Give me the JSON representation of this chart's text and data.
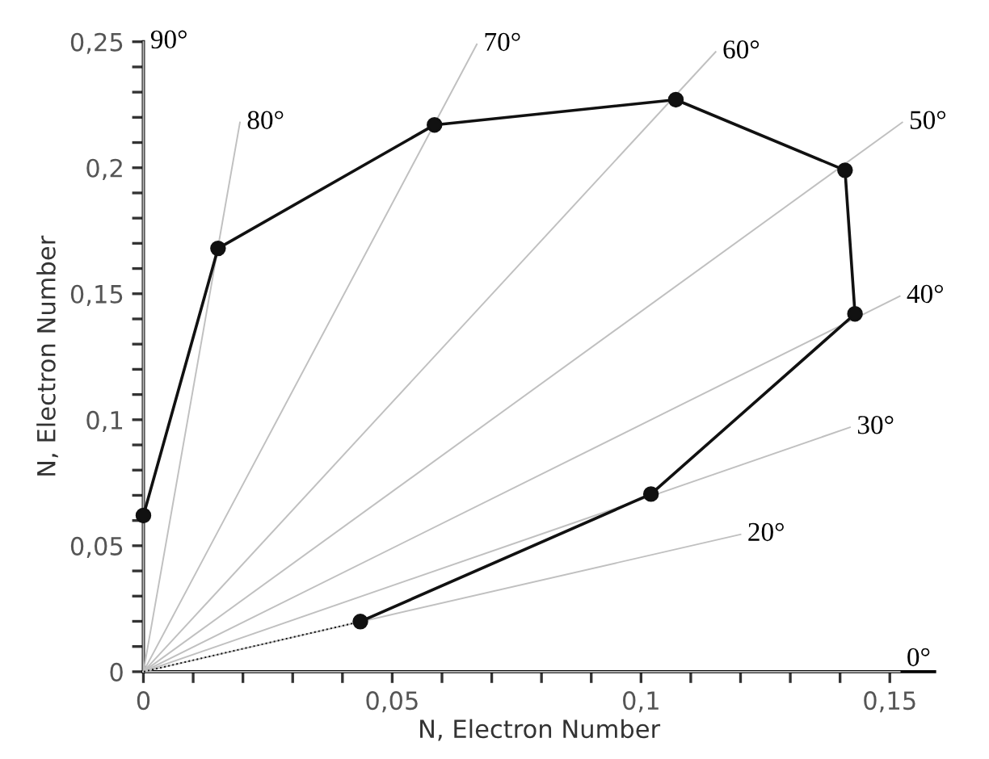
{
  "chart_data": {
    "type": "line",
    "xlabel": "N, Electron Number",
    "ylabel": "N, Electron Number",
    "xlim": [
      0,
      0.159
    ],
    "ylim": [
      0,
      0.25
    ],
    "xticks": [
      {
        "value": 0,
        "label": "0"
      },
      {
        "value": 0.01,
        "label": null
      },
      {
        "value": 0.02,
        "label": null
      },
      {
        "value": 0.03,
        "label": null
      },
      {
        "value": 0.04,
        "label": null
      },
      {
        "value": 0.05,
        "label": "0,05"
      },
      {
        "value": 0.06,
        "label": null
      },
      {
        "value": 0.07,
        "label": null
      },
      {
        "value": 0.08,
        "label": null
      },
      {
        "value": 0.09,
        "label": null
      },
      {
        "value": 0.1,
        "label": "0,1"
      },
      {
        "value": 0.11,
        "label": null
      },
      {
        "value": 0.12,
        "label": null
      },
      {
        "value": 0.13,
        "label": null
      },
      {
        "value": 0.14,
        "label": null
      },
      {
        "value": 0.15,
        "label": "0,15"
      }
    ],
    "yticks": [
      {
        "value": 0,
        "label": "0"
      },
      {
        "value": 0.01,
        "label": null
      },
      {
        "value": 0.02,
        "label": null
      },
      {
        "value": 0.03,
        "label": null
      },
      {
        "value": 0.04,
        "label": null
      },
      {
        "value": 0.05,
        "label": "0,05"
      },
      {
        "value": 0.06,
        "label": null
      },
      {
        "value": 0.07,
        "label": null
      },
      {
        "value": 0.08,
        "label": null
      },
      {
        "value": 0.09,
        "label": null
      },
      {
        "value": 0.1,
        "label": "0,1"
      },
      {
        "value": 0.11,
        "label": null
      },
      {
        "value": 0.12,
        "label": null
      },
      {
        "value": 0.13,
        "label": null
      },
      {
        "value": 0.14,
        "label": null
      },
      {
        "value": 0.15,
        "label": "0,15"
      },
      {
        "value": 0.16,
        "label": null
      },
      {
        "value": 0.17,
        "label": null
      },
      {
        "value": 0.18,
        "label": null
      },
      {
        "value": 0.19,
        "label": null
      },
      {
        "value": 0.2,
        "label": "0,2"
      },
      {
        "value": 0.21,
        "label": null
      },
      {
        "value": 0.22,
        "label": null
      },
      {
        "value": 0.23,
        "label": null
      },
      {
        "value": 0.24,
        "label": null
      },
      {
        "value": 0.25,
        "label": "0,25"
      }
    ],
    "grid": false,
    "legend": false,
    "series": [
      {
        "color": "#c0c0c0",
        "x": [
          0,
          0.152
        ],
        "values": [
          0,
          0
        ],
        "marker": "none"
      },
      {
        "color": "#c0c0c0",
        "x": [
          0,
          0
        ],
        "values": [
          0,
          0.25
        ],
        "marker": "none"
      },
      {
        "color": "#c0c0c0",
        "x": [
          0,
          0.0194
        ],
        "values": [
          0,
          0.218
        ],
        "marker": "none"
      },
      {
        "color": "#c0c0c0",
        "x": [
          0,
          0.067
        ],
        "values": [
          0,
          0.249
        ],
        "marker": "none"
      },
      {
        "color": "#c0c0c0",
        "x": [
          0,
          0.115
        ],
        "values": [
          0,
          0.246
        ],
        "marker": "none"
      },
      {
        "color": "#c0c0c0",
        "x": [
          0,
          0.1525
        ],
        "values": [
          0,
          0.218
        ],
        "marker": "none"
      },
      {
        "color": "#c0c0c0",
        "x": [
          0,
          0.152
        ],
        "values": [
          0,
          0.149
        ],
        "marker": "none"
      },
      {
        "color": "#c0c0c0",
        "x": [
          0,
          0.142
        ],
        "values": [
          0,
          0.097
        ],
        "marker": "none"
      },
      {
        "color": "#c0c0c0",
        "x": [
          0,
          0.12
        ],
        "values": [
          0,
          0.0545
        ],
        "marker": "none"
      },
      {
        "color": "#111111",
        "x": [
          0.0436,
          0
        ],
        "values": [
          0.0199,
          0
        ],
        "line_style": "dotted"
      },
      {
        "color": "#111111",
        "x": [
          0,
          0.015,
          0.0585,
          0.107,
          0.141,
          0.143,
          0.102,
          0.0436
        ],
        "values": [
          0.062,
          0.168,
          0.217,
          0.227,
          0.199,
          0.142,
          0.0705,
          0.0199
        ],
        "marker": "circle"
      }
    ],
    "annotations": [
      {
        "text": "90°",
        "x": 0,
        "y": 0.25
      },
      {
        "text": "80°",
        "x": 0.0194,
        "y": 0.218
      },
      {
        "text": "70°",
        "x": 0.067,
        "y": 0.249
      },
      {
        "text": "60°",
        "x": 0.115,
        "y": 0.246
      },
      {
        "text": "50°",
        "x": 0.1525,
        "y": 0.218
      },
      {
        "text": "40°",
        "x": 0.152,
        "y": 0.149
      },
      {
        "text": "30°",
        "x": 0.142,
        "y": 0.097
      },
      {
        "text": "20°",
        "x": 0.12,
        "y": 0.0545
      },
      {
        "text": "0°",
        "x": 0.152,
        "y": 0
      }
    ]
  }
}
